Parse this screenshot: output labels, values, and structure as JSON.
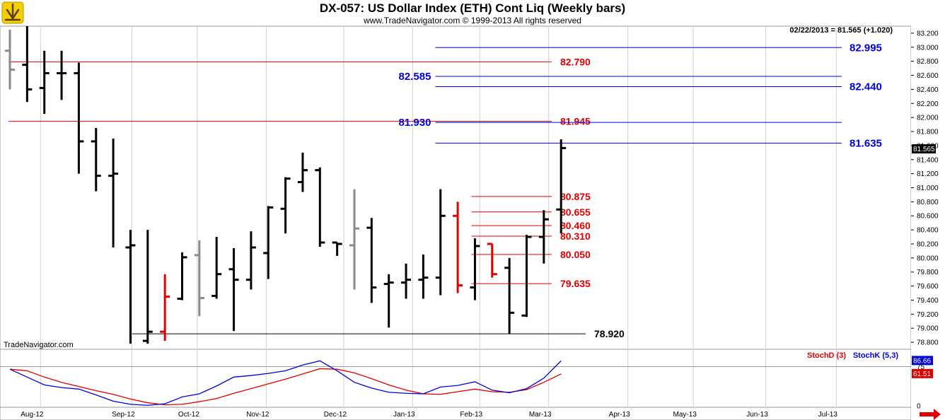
{
  "header": {
    "title": "DX-057:  US Dollar Index (ETH) Cont Liq  (Weekly bars)",
    "subtitle": "www.TradeNavigator.com © 1999-2013 All rights reserved",
    "quote": "02/22/2013 = 81.565 (+1.020)",
    "watermark": "TradeNavigator.com"
  },
  "chart_data": [
    {
      "type": "ohlc",
      "ylim": [
        78.7,
        83.3
      ],
      "y_ticks": [
        "78.800",
        "79.000",
        "79.200",
        "79.400",
        "79.600",
        "79.800",
        "80.000",
        "80.200",
        "80.400",
        "80.600",
        "80.800",
        "81.000",
        "81.200",
        "81.400",
        "81.600",
        "81.800",
        "82.000",
        "82.200",
        "82.400",
        "82.600",
        "82.800",
        "83.000",
        "83.200"
      ],
      "x_ticks": [
        "Aug-12",
        "Sep-12",
        "Oct-12",
        "Nov-12",
        "Dec-12",
        "Jan-13",
        "Feb-13",
        "Mar-13",
        "Apr-13",
        "May-13",
        "Jun-13",
        "Jul-13"
      ],
      "last_price": "81.565",
      "bars": [
        {
          "o": 82.95,
          "h": 83.25,
          "l": 82.4,
          "c": 82.68,
          "color": "gray"
        },
        {
          "o": 82.75,
          "h": 83.3,
          "l": 82.22,
          "c": 82.4,
          "color": "black"
        },
        {
          "o": 82.42,
          "h": 82.95,
          "l": 82.05,
          "c": 82.63,
          "color": "black"
        },
        {
          "o": 82.63,
          "h": 82.95,
          "l": 82.25,
          "c": 82.63,
          "color": "black"
        },
        {
          "o": 82.63,
          "h": 82.78,
          "l": 81.2,
          "c": 81.66,
          "color": "black"
        },
        {
          "o": 81.66,
          "h": 81.85,
          "l": 80.95,
          "c": 81.17,
          "color": "black"
        },
        {
          "o": 81.17,
          "h": 81.7,
          "l": 80.15,
          "c": 81.2,
          "color": "black"
        },
        {
          "o": 80.15,
          "h": 80.4,
          "l": 78.78,
          "c": 80.18,
          "color": "black"
        },
        {
          "o": 78.82,
          "h": 80.4,
          "l": 78.78,
          "c": 78.95,
          "color": "black"
        },
        {
          "o": 78.95,
          "h": 79.77,
          "l": 78.82,
          "c": 79.45,
          "color": "red"
        },
        {
          "o": 79.42,
          "h": 80.08,
          "l": 79.4,
          "c": 80.01,
          "color": "black"
        },
        {
          "o": 80.04,
          "h": 80.25,
          "l": 79.17,
          "c": 79.43,
          "color": "gray"
        },
        {
          "o": 79.46,
          "h": 80.3,
          "l": 79.42,
          "c": 79.77,
          "color": "black"
        },
        {
          "o": 79.84,
          "h": 80.14,
          "l": 78.96,
          "c": 79.69,
          "color": "black"
        },
        {
          "o": 79.69,
          "h": 80.38,
          "l": 79.55,
          "c": 80.15,
          "color": "black"
        },
        {
          "o": 80.07,
          "h": 80.74,
          "l": 79.7,
          "c": 80.72,
          "color": "black"
        },
        {
          "o": 80.7,
          "h": 81.15,
          "l": 80.35,
          "c": 81.13,
          "color": "black"
        },
        {
          "o": 81.08,
          "h": 81.5,
          "l": 80.94,
          "c": 81.25,
          "color": "black"
        },
        {
          "o": 81.25,
          "h": 81.29,
          "l": 80.16,
          "c": 80.22,
          "color": "black"
        },
        {
          "o": 80.22,
          "h": 80.22,
          "l": 80.03,
          "c": 80.2,
          "color": "black"
        },
        {
          "o": 80.18,
          "h": 80.98,
          "l": 79.55,
          "c": 80.42,
          "color": "gray"
        },
        {
          "o": 80.43,
          "h": 80.57,
          "l": 79.36,
          "c": 79.58,
          "color": "black"
        },
        {
          "o": 79.63,
          "h": 79.77,
          "l": 79.01,
          "c": 79.65,
          "color": "black"
        },
        {
          "o": 79.65,
          "h": 79.92,
          "l": 79.42,
          "c": 79.69,
          "color": "black"
        },
        {
          "o": 79.69,
          "h": 80.05,
          "l": 79.42,
          "c": 79.72,
          "color": "black"
        },
        {
          "o": 79.72,
          "h": 80.98,
          "l": 79.47,
          "c": 80.6,
          "color": "black"
        },
        {
          "o": 80.6,
          "h": 80.8,
          "l": 79.5,
          "c": 79.61,
          "color": "red"
        },
        {
          "o": 79.58,
          "h": 80.28,
          "l": 79.4,
          "c": 80.17,
          "color": "black"
        },
        {
          "o": 80.2,
          "h": 80.2,
          "l": 79.72,
          "c": 79.77,
          "color": "red"
        },
        {
          "o": 79.86,
          "h": 80.0,
          "l": 78.92,
          "c": 79.22,
          "color": "black"
        },
        {
          "o": 79.18,
          "h": 80.33,
          "l": 79.16,
          "c": 80.3,
          "color": "black"
        },
        {
          "o": 80.3,
          "h": 80.68,
          "l": 79.92,
          "c": 80.55,
          "color": "black"
        },
        {
          "o": 80.69,
          "h": 81.69,
          "l": 80.35,
          "c": 81.565,
          "color": "black"
        }
      ],
      "levels": [
        {
          "value": 82.79,
          "label": "82.790",
          "color": "#e00000",
          "from": "start",
          "label_side": "right"
        },
        {
          "value": 81.945,
          "label": "81.945",
          "color": "#e00000",
          "from": "start",
          "label_side": "right"
        },
        {
          "value": 80.875,
          "label": "80.875",
          "color": "#e00000",
          "from": "feb",
          "label_side": "right"
        },
        {
          "value": 80.655,
          "label": "80.655",
          "color": "#e00000",
          "from": "feb",
          "label_side": "right"
        },
        {
          "value": 80.46,
          "label": "80.460",
          "color": "#e00000",
          "from": "feb",
          "label_side": "right"
        },
        {
          "value": 80.31,
          "label": "80.310",
          "color": "#e00000",
          "from": "feb",
          "label_side": "right"
        },
        {
          "value": 80.05,
          "label": "80.050",
          "color": "#e00000",
          "from": "feb",
          "label_side": "right"
        },
        {
          "value": 79.635,
          "label": "79.635",
          "color": "#e00000",
          "from": "feb",
          "label_side": "right"
        },
        {
          "value": 78.92,
          "label": "78.920",
          "color": "#000000",
          "from": "sep",
          "label_side": "right"
        },
        {
          "value": 82.995,
          "label": "82.995",
          "color": "#0000e0",
          "from": "jan",
          "label_side": "far"
        },
        {
          "value": 82.585,
          "label": "82.585",
          "color": "#0000e0",
          "from": "jan",
          "label_side": "left"
        },
        {
          "value": 82.44,
          "label": "82.440",
          "color": "#0000e0",
          "from": "jan",
          "label_side": "far"
        },
        {
          "value": 81.93,
          "label": "81.930",
          "color": "#0000e0",
          "from": "jan",
          "label_side": "left"
        },
        {
          "value": 81.635,
          "label": "81.635",
          "color": "#0000e0",
          "from": "jan",
          "label_side": "far"
        }
      ]
    },
    {
      "type": "line",
      "ylim": [
        0,
        100
      ],
      "legend": [
        "StochD (3)",
        "StochK (5,3)"
      ],
      "series": [
        {
          "name": "StochD (3)",
          "color": "#e00000",
          "label": "61.51",
          "values": [
            70,
            67,
            55,
            45,
            37,
            29,
            22,
            13,
            6,
            2,
            3,
            8,
            14,
            24,
            33,
            42,
            51,
            61,
            71,
            70,
            63,
            52,
            40,
            30,
            23,
            22,
            27,
            32,
            27,
            26,
            31,
            45,
            61
          ]
        },
        {
          "name": "StochK (5,3)",
          "color": "#0000e0",
          "label": "86.66",
          "values": [
            70,
            55,
            40,
            35,
            32,
            21,
            9,
            3,
            1,
            4,
            17,
            23,
            38,
            55,
            58,
            62,
            67,
            78,
            86,
            67,
            45,
            34,
            26,
            24,
            23,
            36,
            39,
            46,
            30,
            25,
            33,
            53,
            86
          ]
        }
      ],
      "y_ticks": [
        "0",
        "75"
      ]
    }
  ]
}
